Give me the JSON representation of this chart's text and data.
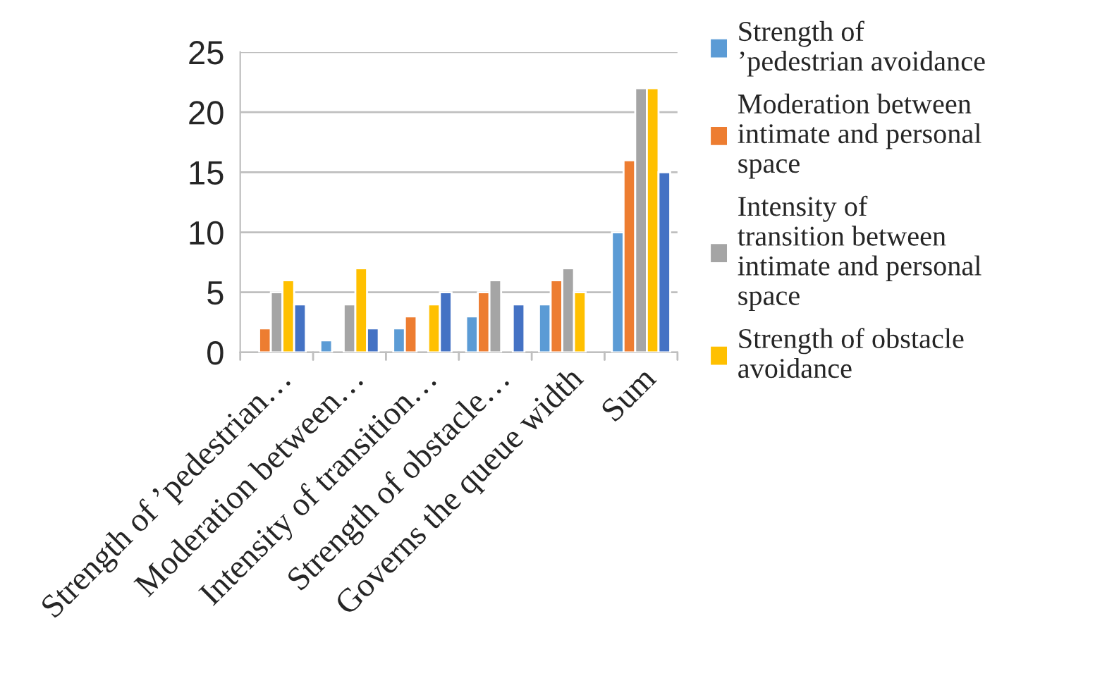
{
  "chart_data": {
    "type": "bar",
    "categories": [
      "Strength of ’pedestrian…",
      "Moderation between…",
      "Intensity of transition…",
      "Strength of obstacle…",
      "Governs the queue width",
      "Sum"
    ],
    "series": [
      {
        "name": "Strength of ’pedestrian avoidance",
        "color": "#5b9bd5",
        "values": [
          null,
          1,
          2,
          3,
          4,
          10
        ]
      },
      {
        "name": "Moderation between intimate and personal space",
        "color": "#ed7d31",
        "values": [
          2,
          null,
          3,
          5,
          6,
          16
        ]
      },
      {
        "name": "Intensity of transition between intimate and personal space",
        "color": "#a5a5a5",
        "values": [
          5,
          4,
          null,
          6,
          7,
          22
        ]
      },
      {
        "name": "Strength of obstacle avoidance",
        "color": "#ffc000",
        "values": [
          6,
          7,
          4,
          null,
          5,
          22
        ]
      },
      {
        "color": "#4472c4",
        "values": [
          4,
          2,
          5,
          4,
          null,
          15
        ]
      }
    ],
    "ylim": [
      0,
      25
    ],
    "yticks": [
      0,
      5,
      10,
      15,
      20,
      25
    ],
    "grid": "y",
    "legend": "right"
  }
}
